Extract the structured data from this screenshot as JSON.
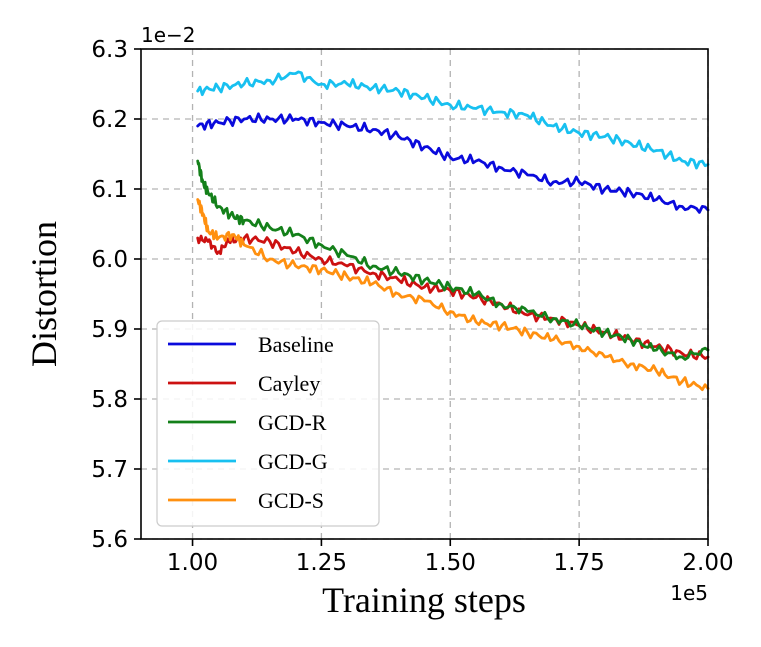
{
  "chart_data": {
    "type": "line",
    "xlabel": "Training steps",
    "ylabel": "Distortion",
    "x_exponent_label": "1e5",
    "y_exponent_label": "1e−2",
    "xlim": [
      0.9,
      2.0
    ],
    "ylim": [
      5.6,
      6.3
    ],
    "x_ticks": [
      1.0,
      1.25,
      1.5,
      1.75,
      2.0
    ],
    "x_tick_labels": [
      "1.00",
      "1.25",
      "1.50",
      "1.75",
      "2.00"
    ],
    "y_ticks": [
      5.6,
      5.7,
      5.8,
      5.9,
      6.0,
      6.1,
      6.2,
      6.3
    ],
    "y_tick_labels": [
      "5.6",
      "5.7",
      "5.8",
      "5.9",
      "6.0",
      "6.1",
      "6.2",
      "6.3"
    ],
    "grid": true,
    "legend_position": "lower-left",
    "series": [
      {
        "name": "Baseline",
        "color": "#0a0adc",
        "x": [
          1.01,
          1.05,
          1.1,
          1.15,
          1.2,
          1.25,
          1.3,
          1.35,
          1.4,
          1.45,
          1.5,
          1.55,
          1.6,
          1.65,
          1.7,
          1.75,
          1.8,
          1.85,
          1.9,
          1.95,
          2.0
        ],
        "y": [
          6.19,
          6.195,
          6.2,
          6.2,
          6.2,
          6.195,
          6.19,
          6.185,
          6.175,
          6.16,
          6.145,
          6.14,
          6.13,
          6.12,
          6.11,
          6.11,
          6.1,
          6.095,
          6.085,
          6.075,
          6.07
        ]
      },
      {
        "name": "Cayley",
        "color": "#cc1111",
        "x": [
          1.01,
          1.03,
          1.05,
          1.07,
          1.1,
          1.15,
          1.2,
          1.25,
          1.3,
          1.35,
          1.4,
          1.45,
          1.5,
          1.55,
          1.6,
          1.65,
          1.7,
          1.75,
          1.8,
          1.85,
          1.9,
          1.95,
          2.0
        ],
        "y": [
          6.03,
          6.025,
          6.01,
          6.025,
          6.03,
          6.025,
          6.01,
          6.0,
          5.99,
          5.98,
          5.97,
          5.96,
          5.955,
          5.945,
          5.935,
          5.92,
          5.915,
          5.905,
          5.895,
          5.885,
          5.875,
          5.865,
          5.86
        ]
      },
      {
        "name": "GCD-R",
        "color": "#14801a",
        "x": [
          1.01,
          1.02,
          1.03,
          1.05,
          1.08,
          1.1,
          1.15,
          1.2,
          1.25,
          1.3,
          1.35,
          1.4,
          1.45,
          1.5,
          1.55,
          1.6,
          1.65,
          1.7,
          1.75,
          1.8,
          1.85,
          1.9,
          1.95,
          2.0
        ],
        "y": [
          6.14,
          6.11,
          6.095,
          6.075,
          6.06,
          6.055,
          6.045,
          6.035,
          6.02,
          6.005,
          5.99,
          5.98,
          5.97,
          5.96,
          5.95,
          5.935,
          5.925,
          5.915,
          5.905,
          5.895,
          5.885,
          5.87,
          5.86,
          5.87
        ]
      },
      {
        "name": "GCD-G",
        "color": "#18c0f0",
        "x": [
          1.01,
          1.05,
          1.1,
          1.15,
          1.2,
          1.25,
          1.3,
          1.35,
          1.4,
          1.45,
          1.5,
          1.55,
          1.6,
          1.65,
          1.7,
          1.75,
          1.8,
          1.85,
          1.9,
          1.95,
          2.0
        ],
        "y": [
          6.24,
          6.245,
          6.25,
          6.255,
          6.265,
          6.25,
          6.25,
          6.245,
          6.24,
          6.23,
          6.22,
          6.215,
          6.21,
          6.205,
          6.19,
          6.18,
          6.175,
          6.165,
          6.155,
          6.14,
          6.135
        ]
      },
      {
        "name": "GCD-S",
        "color": "#ff9010",
        "x": [
          1.01,
          1.02,
          1.03,
          1.05,
          1.08,
          1.1,
          1.15,
          1.2,
          1.25,
          1.3,
          1.35,
          1.4,
          1.45,
          1.5,
          1.55,
          1.6,
          1.65,
          1.7,
          1.75,
          1.8,
          1.85,
          1.9,
          1.95,
          2.0
        ],
        "y": [
          6.085,
          6.065,
          6.04,
          6.03,
          6.035,
          6.02,
          6.0,
          5.99,
          5.985,
          5.975,
          5.965,
          5.95,
          5.94,
          5.925,
          5.91,
          5.905,
          5.895,
          5.885,
          5.875,
          5.86,
          5.85,
          5.84,
          5.825,
          5.815
        ]
      }
    ]
  }
}
